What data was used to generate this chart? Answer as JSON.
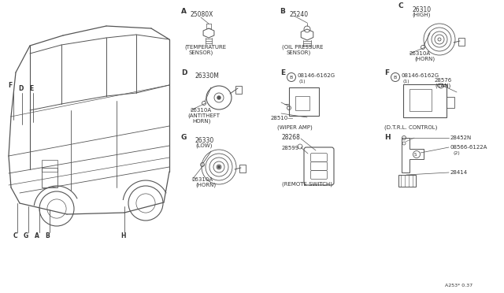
{
  "bg_color": "#ffffff",
  "line_color": "#555555",
  "text_color": "#333333",
  "parts": {
    "A_label": "A",
    "A_part": "25080X",
    "B_label": "B",
    "B_part": "25240",
    "C_label": "C",
    "C_part": "26310",
    "C_sub": "(HIGH)",
    "C_conn": "26310A",
    "C_desc": "(HORN)",
    "D_label": "D",
    "D_part": "26330M",
    "D_conn": "26310A",
    "D_desc1": "(ANTITHEFT",
    "D_desc2": "HORN)",
    "E_label": "E",
    "E_bolt": "08146-6162G",
    "E_bolt_num": "(1)",
    "E_part": "28510",
    "E_desc": "(WIPER AMP)",
    "F_label": "F",
    "F_bolt": "08146-6162G",
    "F_bolt_num": "(1)",
    "F_can": "28576",
    "F_can_sub": "(CAN)",
    "F_desc": "(D.T.R.L. CONTROL)",
    "G_label": "G",
    "G_part": "26330",
    "G_sub": "(LOW)",
    "G_conn": "26310A",
    "G_desc": "(HORN)",
    "H_label": "H",
    "H_part1": "28452N",
    "H_part2": "08566-6122A",
    "H_part2_num": "(2)",
    "H_part3": "28414",
    "RS_part1": "28268",
    "RS_part2": "28599",
    "RS_desc": "(REMOTE SWITCH)",
    "A_desc1": "(TEMPERATURE",
    "A_desc2": "SENSOR)",
    "B_desc1": "(OIL PRESSURE",
    "B_desc2": "SENSOR)",
    "footer": "A253* 0.37",
    "car_top_labels": [
      [
        "F",
        10,
        262
      ],
      [
        "D",
        25,
        262
      ],
      [
        "E",
        40,
        262
      ]
    ],
    "car_bot_labels": [
      [
        "C",
        18,
        68
      ],
      [
        "G",
        32,
        68
      ],
      [
        "A",
        46,
        68
      ],
      [
        "B",
        60,
        68
      ],
      [
        "H",
        150,
        68
      ]
    ]
  }
}
